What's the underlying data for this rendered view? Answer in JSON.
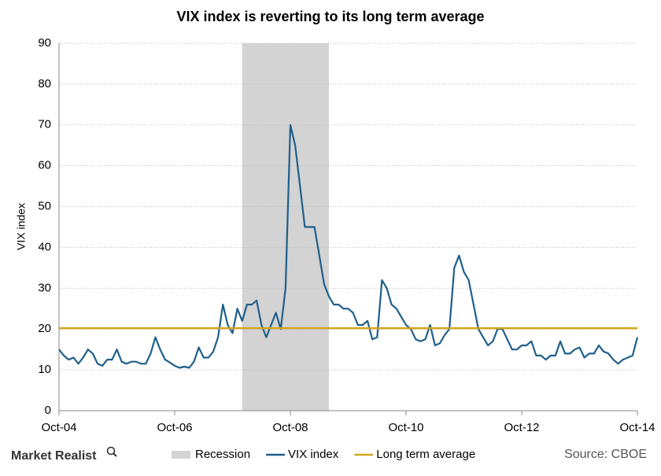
{
  "chart_data": {
    "type": "line",
    "title": "VIX index is reverting  to its long term average",
    "y_label": "VIX index",
    "source": "Source: CBOE",
    "brand": "Market Realist",
    "x": [
      "Oct-04",
      "Nov-04",
      "Dec-04",
      "Jan-05",
      "Feb-05",
      "Mar-05",
      "Apr-05",
      "May-05",
      "Jun-05",
      "Jul-05",
      "Aug-05",
      "Sep-05",
      "Oct-05",
      "Nov-05",
      "Dec-05",
      "Jan-06",
      "Feb-06",
      "Mar-06",
      "Apr-06",
      "May-06",
      "Jun-06",
      "Jul-06",
      "Aug-06",
      "Sep-06",
      "Oct-06",
      "Nov-06",
      "Dec-06",
      "Jan-07",
      "Feb-07",
      "Mar-07",
      "Apr-07",
      "May-07",
      "Jun-07",
      "Jul-07",
      "Aug-07",
      "Sep-07",
      "Oct-07",
      "Nov-07",
      "Dec-07",
      "Jan-08",
      "Feb-08",
      "Mar-08",
      "Apr-08",
      "May-08",
      "Jun-08",
      "Jul-08",
      "Aug-08",
      "Sep-08",
      "Oct-08",
      "Nov-08",
      "Dec-08",
      "Jan-09",
      "Feb-09",
      "Mar-09",
      "Apr-09",
      "May-09",
      "Jun-09",
      "Jul-09",
      "Aug-09",
      "Sep-09",
      "Oct-09",
      "Nov-09",
      "Dec-09",
      "Jan-10",
      "Feb-10",
      "Mar-10",
      "Apr-10",
      "May-10",
      "Jun-10",
      "Jul-10",
      "Aug-10",
      "Sep-10",
      "Oct-10",
      "Nov-10",
      "Dec-10",
      "Jan-11",
      "Feb-11",
      "Mar-11",
      "Apr-11",
      "May-11",
      "Jun-11",
      "Jul-11",
      "Aug-11",
      "Sep-11",
      "Oct-11",
      "Nov-11",
      "Dec-11",
      "Jan-12",
      "Feb-12",
      "Mar-12",
      "Apr-12",
      "May-12",
      "Jun-12",
      "Jul-12",
      "Aug-12",
      "Sep-12",
      "Oct-12",
      "Nov-12",
      "Dec-12",
      "Jan-13",
      "Feb-13",
      "Mar-13",
      "Apr-13",
      "May-13",
      "Jun-13",
      "Jul-13",
      "Aug-13",
      "Sep-13",
      "Oct-13",
      "Nov-13",
      "Dec-13",
      "Jan-14",
      "Feb-14",
      "Mar-14",
      "Apr-14",
      "May-14",
      "Jun-14",
      "Jul-14",
      "Aug-14",
      "Sep-14",
      "Oct-14"
    ],
    "series": [
      {
        "name": "VIX index",
        "color": "#1f5f8b",
        "values": [
          15,
          13.5,
          12.5,
          13,
          11.5,
          13,
          15,
          14,
          11.5,
          11,
          12.5,
          12.5,
          15,
          12,
          11.5,
          12,
          12,
          11.5,
          11.5,
          14,
          18,
          15,
          12.5,
          11.8,
          11,
          10.5,
          10.8,
          10.5,
          12,
          15.5,
          13,
          13,
          14.5,
          18,
          26,
          21,
          19,
          25,
          22,
          26,
          26,
          27,
          21,
          18,
          21,
          24,
          20,
          30,
          70,
          65,
          55,
          45,
          45,
          45,
          38,
          31,
          28,
          26,
          26,
          25,
          25,
          24,
          21,
          21,
          22,
          17.5,
          18,
          32,
          30,
          26,
          25,
          23,
          21,
          20,
          17.5,
          17,
          17.5,
          21,
          16,
          16.5,
          18.5,
          20,
          35,
          38,
          34,
          32,
          26,
          20,
          18,
          16,
          17,
          20,
          20,
          17.5,
          15,
          15,
          16,
          16,
          17,
          13.5,
          13.5,
          12.5,
          13.5,
          13.5,
          17,
          14,
          14,
          15,
          15.5,
          13,
          14,
          14,
          16,
          14.5,
          14,
          12.5,
          11.5,
          12.5,
          13,
          13.5,
          18
        ]
      }
    ],
    "reference_lines": [
      {
        "name": "Long term average",
        "value": 20.2,
        "color": "#d4a520"
      }
    ],
    "shaded_regions": [
      {
        "name": "Recession",
        "color": "#d3d3d3",
        "start": "Dec-07",
        "end": "Jun-09"
      }
    ],
    "xticks": [
      "Oct-04",
      "Oct-06",
      "Oct-08",
      "Oct-10",
      "Oct-12",
      "Oct-14"
    ],
    "ylim": [
      0,
      90
    ],
    "yticks": [
      0,
      10,
      20,
      30,
      40,
      50,
      60,
      70,
      80,
      90
    ],
    "grid": true,
    "legend": "bottom"
  }
}
